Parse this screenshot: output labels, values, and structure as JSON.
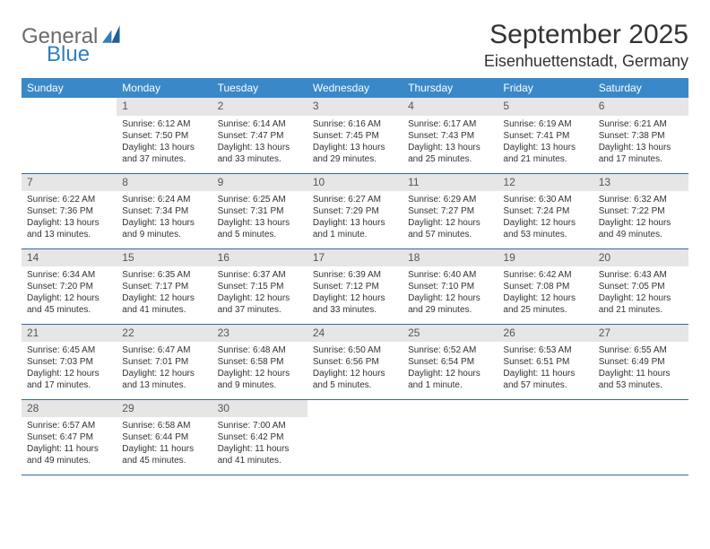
{
  "brand": {
    "word1": "General",
    "word2": "Blue"
  },
  "title": "September 2025",
  "location": "Eisenhuettenstadt, Germany",
  "colors": {
    "header_bg": "#3a88c8",
    "header_text": "#ffffff",
    "row_divider": "#2f6aa0",
    "daynum_bg": "#e6e6e6",
    "text": "#333333",
    "logo_gray": "#6b6b6b",
    "logo_blue": "#2f7fc1"
  },
  "day_headers": [
    "Sunday",
    "Monday",
    "Tuesday",
    "Wednesday",
    "Thursday",
    "Friday",
    "Saturday"
  ],
  "weeks": [
    [
      {
        "n": "",
        "sunrise": "",
        "sunset": "",
        "daylight": ""
      },
      {
        "n": "1",
        "sunrise": "Sunrise: 6:12 AM",
        "sunset": "Sunset: 7:50 PM",
        "daylight": "Daylight: 13 hours and 37 minutes."
      },
      {
        "n": "2",
        "sunrise": "Sunrise: 6:14 AM",
        "sunset": "Sunset: 7:47 PM",
        "daylight": "Daylight: 13 hours and 33 minutes."
      },
      {
        "n": "3",
        "sunrise": "Sunrise: 6:16 AM",
        "sunset": "Sunset: 7:45 PM",
        "daylight": "Daylight: 13 hours and 29 minutes."
      },
      {
        "n": "4",
        "sunrise": "Sunrise: 6:17 AM",
        "sunset": "Sunset: 7:43 PM",
        "daylight": "Daylight: 13 hours and 25 minutes."
      },
      {
        "n": "5",
        "sunrise": "Sunrise: 6:19 AM",
        "sunset": "Sunset: 7:41 PM",
        "daylight": "Daylight: 13 hours and 21 minutes."
      },
      {
        "n": "6",
        "sunrise": "Sunrise: 6:21 AM",
        "sunset": "Sunset: 7:38 PM",
        "daylight": "Daylight: 13 hours and 17 minutes."
      }
    ],
    [
      {
        "n": "7",
        "sunrise": "Sunrise: 6:22 AM",
        "sunset": "Sunset: 7:36 PM",
        "daylight": "Daylight: 13 hours and 13 minutes."
      },
      {
        "n": "8",
        "sunrise": "Sunrise: 6:24 AM",
        "sunset": "Sunset: 7:34 PM",
        "daylight": "Daylight: 13 hours and 9 minutes."
      },
      {
        "n": "9",
        "sunrise": "Sunrise: 6:25 AM",
        "sunset": "Sunset: 7:31 PM",
        "daylight": "Daylight: 13 hours and 5 minutes."
      },
      {
        "n": "10",
        "sunrise": "Sunrise: 6:27 AM",
        "sunset": "Sunset: 7:29 PM",
        "daylight": "Daylight: 13 hours and 1 minute."
      },
      {
        "n": "11",
        "sunrise": "Sunrise: 6:29 AM",
        "sunset": "Sunset: 7:27 PM",
        "daylight": "Daylight: 12 hours and 57 minutes."
      },
      {
        "n": "12",
        "sunrise": "Sunrise: 6:30 AM",
        "sunset": "Sunset: 7:24 PM",
        "daylight": "Daylight: 12 hours and 53 minutes."
      },
      {
        "n": "13",
        "sunrise": "Sunrise: 6:32 AM",
        "sunset": "Sunset: 7:22 PM",
        "daylight": "Daylight: 12 hours and 49 minutes."
      }
    ],
    [
      {
        "n": "14",
        "sunrise": "Sunrise: 6:34 AM",
        "sunset": "Sunset: 7:20 PM",
        "daylight": "Daylight: 12 hours and 45 minutes."
      },
      {
        "n": "15",
        "sunrise": "Sunrise: 6:35 AM",
        "sunset": "Sunset: 7:17 PM",
        "daylight": "Daylight: 12 hours and 41 minutes."
      },
      {
        "n": "16",
        "sunrise": "Sunrise: 6:37 AM",
        "sunset": "Sunset: 7:15 PM",
        "daylight": "Daylight: 12 hours and 37 minutes."
      },
      {
        "n": "17",
        "sunrise": "Sunrise: 6:39 AM",
        "sunset": "Sunset: 7:12 PM",
        "daylight": "Daylight: 12 hours and 33 minutes."
      },
      {
        "n": "18",
        "sunrise": "Sunrise: 6:40 AM",
        "sunset": "Sunset: 7:10 PM",
        "daylight": "Daylight: 12 hours and 29 minutes."
      },
      {
        "n": "19",
        "sunrise": "Sunrise: 6:42 AM",
        "sunset": "Sunset: 7:08 PM",
        "daylight": "Daylight: 12 hours and 25 minutes."
      },
      {
        "n": "20",
        "sunrise": "Sunrise: 6:43 AM",
        "sunset": "Sunset: 7:05 PM",
        "daylight": "Daylight: 12 hours and 21 minutes."
      }
    ],
    [
      {
        "n": "21",
        "sunrise": "Sunrise: 6:45 AM",
        "sunset": "Sunset: 7:03 PM",
        "daylight": "Daylight: 12 hours and 17 minutes."
      },
      {
        "n": "22",
        "sunrise": "Sunrise: 6:47 AM",
        "sunset": "Sunset: 7:01 PM",
        "daylight": "Daylight: 12 hours and 13 minutes."
      },
      {
        "n": "23",
        "sunrise": "Sunrise: 6:48 AM",
        "sunset": "Sunset: 6:58 PM",
        "daylight": "Daylight: 12 hours and 9 minutes."
      },
      {
        "n": "24",
        "sunrise": "Sunrise: 6:50 AM",
        "sunset": "Sunset: 6:56 PM",
        "daylight": "Daylight: 12 hours and 5 minutes."
      },
      {
        "n": "25",
        "sunrise": "Sunrise: 6:52 AM",
        "sunset": "Sunset: 6:54 PM",
        "daylight": "Daylight: 12 hours and 1 minute."
      },
      {
        "n": "26",
        "sunrise": "Sunrise: 6:53 AM",
        "sunset": "Sunset: 6:51 PM",
        "daylight": "Daylight: 11 hours and 57 minutes."
      },
      {
        "n": "27",
        "sunrise": "Sunrise: 6:55 AM",
        "sunset": "Sunset: 6:49 PM",
        "daylight": "Daylight: 11 hours and 53 minutes."
      }
    ],
    [
      {
        "n": "28",
        "sunrise": "Sunrise: 6:57 AM",
        "sunset": "Sunset: 6:47 PM",
        "daylight": "Daylight: 11 hours and 49 minutes."
      },
      {
        "n": "29",
        "sunrise": "Sunrise: 6:58 AM",
        "sunset": "Sunset: 6:44 PM",
        "daylight": "Daylight: 11 hours and 45 minutes."
      },
      {
        "n": "30",
        "sunrise": "Sunrise: 7:00 AM",
        "sunset": "Sunset: 6:42 PM",
        "daylight": "Daylight: 11 hours and 41 minutes."
      },
      {
        "n": "",
        "sunrise": "",
        "sunset": "",
        "daylight": ""
      },
      {
        "n": "",
        "sunrise": "",
        "sunset": "",
        "daylight": ""
      },
      {
        "n": "",
        "sunrise": "",
        "sunset": "",
        "daylight": ""
      },
      {
        "n": "",
        "sunrise": "",
        "sunset": "",
        "daylight": ""
      }
    ]
  ]
}
